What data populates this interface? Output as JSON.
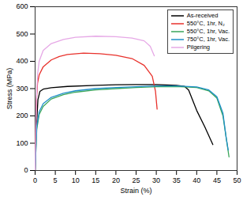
{
  "chart_data": {
    "type": "line",
    "x_label": "Strain (%)",
    "y_label": "Stress (MPa)",
    "xlim": [
      0,
      50
    ],
    "xticks": [
      0,
      5,
      10,
      15,
      20,
      25,
      30,
      35,
      40,
      45,
      50
    ],
    "ylim": [
      0,
      600
    ],
    "yticks": [
      0,
      100,
      200,
      300,
      400,
      500,
      600
    ],
    "legend": "upper right",
    "series": [
      {
        "name": "As-received",
        "color": "#000000",
        "x": [
          0,
          0.3,
          0.7,
          1.2,
          2,
          4,
          8,
          15,
          20,
          25,
          30,
          35,
          37,
          38,
          40,
          42,
          44
        ],
        "values": [
          0,
          150,
          260,
          290,
          298,
          303,
          308,
          312,
          314,
          315,
          315,
          312,
          308,
          295,
          220,
          160,
          95
        ]
      },
      {
        "name": "550°C, 1hr, N₂",
        "color": "#e8322c",
        "x": [
          0,
          0.3,
          0.6,
          1,
          2,
          4,
          6,
          8,
          12,
          16,
          20,
          24,
          27,
          29,
          29.8,
          30.2
        ],
        "values": [
          0,
          250,
          320,
          350,
          380,
          405,
          418,
          425,
          430,
          428,
          422,
          410,
          385,
          345,
          290,
          225
        ]
      },
      {
        "name": "550°C, 1hr, Vac.",
        "color": "#3aa65a",
        "x": [
          0,
          0.4,
          1,
          2,
          4,
          7,
          10,
          15,
          20,
          25,
          30,
          35,
          40,
          43,
          45,
          46.5,
          47.5,
          48
        ],
        "values": [
          0,
          150,
          205,
          235,
          262,
          278,
          287,
          295,
          300,
          304,
          307,
          308,
          304,
          292,
          265,
          200,
          100,
          50
        ]
      },
      {
        "name": "750°C, 1hr, Vac.",
        "color": "#1f8fc8",
        "x": [
          0,
          0.4,
          1,
          2,
          4,
          7,
          10,
          15,
          20,
          25,
          30,
          35,
          40,
          43,
          45,
          46.5,
          47.3,
          47.8
        ],
        "values": [
          0,
          160,
          215,
          245,
          268,
          283,
          292,
          300,
          304,
          307,
          310,
          310,
          306,
          295,
          270,
          210,
          120,
          75
        ]
      },
      {
        "name": "Pilgering",
        "color": "#e6a8e6",
        "x": [
          0,
          0.3,
          0.6,
          1,
          2,
          4,
          7,
          10,
          15,
          20,
          24,
          27,
          28.5,
          29.5
        ],
        "values": [
          0,
          250,
          350,
          400,
          440,
          465,
          480,
          488,
          492,
          490,
          485,
          475,
          455,
          420
        ]
      }
    ]
  }
}
